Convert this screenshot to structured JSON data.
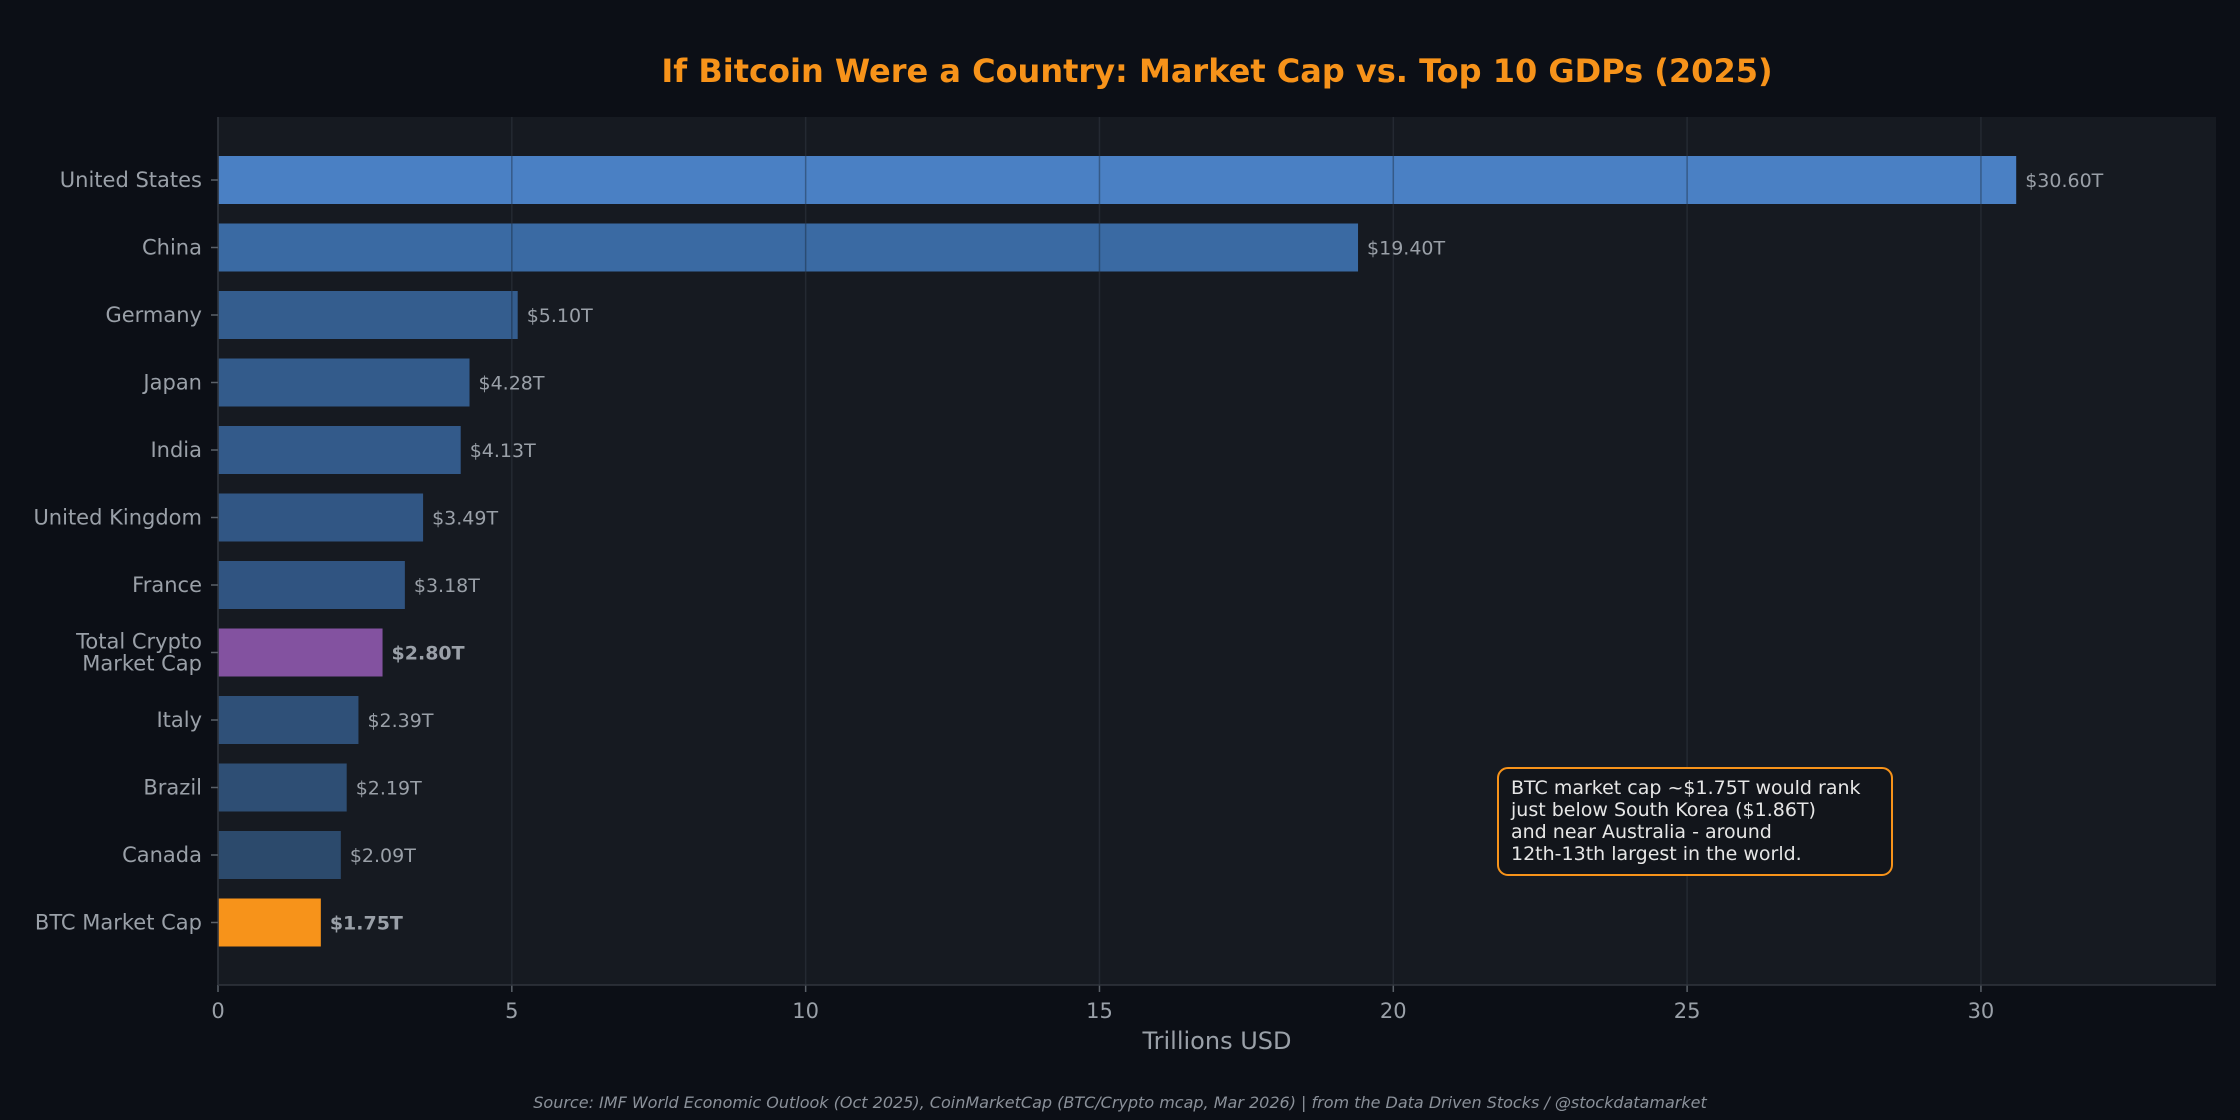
{
  "chart_data": {
    "type": "bar",
    "orientation": "horizontal",
    "title": "If Bitcoin Were a Country: Market Cap vs. Top 10 GDPs (2025)",
    "xlabel": "Trillions USD",
    "ylabel": "",
    "xlim": [
      0,
      34
    ],
    "xticks": [
      0,
      5,
      10,
      15,
      20,
      25,
      30
    ],
    "grid": true,
    "bars": [
      {
        "label": "United States",
        "value": 30.6,
        "value_label": "$30.60T",
        "color": "#4a80c4",
        "highlight": false
      },
      {
        "label": "China",
        "value": 19.4,
        "value_label": "$19.40T",
        "color": "#3a6aa3",
        "highlight": false
      },
      {
        "label": "Germany",
        "value": 5.1,
        "value_label": "$5.10T",
        "color": "#345d8e",
        "highlight": false
      },
      {
        "label": "Japan",
        "value": 4.28,
        "value_label": "$4.28T",
        "color": "#335b8b",
        "highlight": false
      },
      {
        "label": "India",
        "value": 4.13,
        "value_label": "$4.13T",
        "color": "#335a8a",
        "highlight": false
      },
      {
        "label": "United Kingdom",
        "value": 3.49,
        "value_label": "$3.49T",
        "color": "#315684",
        "highlight": false
      },
      {
        "label": "France",
        "value": 3.18,
        "value_label": "$3.18T",
        "color": "#305481",
        "highlight": false
      },
      {
        "label": "Total Crypto\nMarket Cap",
        "value": 2.8,
        "value_label": "$2.80T",
        "color": "#8352a0",
        "highlight": true
      },
      {
        "label": "Italy",
        "value": 2.39,
        "value_label": "$2.39T",
        "color": "#2f5078",
        "highlight": false
      },
      {
        "label": "Brazil",
        "value": 2.19,
        "value_label": "$2.19T",
        "color": "#2e4e74",
        "highlight": false
      },
      {
        "label": "Canada",
        "value": 2.09,
        "value_label": "$2.09T",
        "color": "#2c4a6c",
        "highlight": false
      },
      {
        "label": "BTC Market Cap",
        "value": 1.75,
        "value_label": "$1.75T",
        "color": "#f7931a",
        "highlight": true
      }
    ],
    "highlight_label_color": "#f7931a",
    "annotation": {
      "lines": [
        "BTC market cap ~$1.75T would rank",
        "just below South Korea ($1.86T)",
        "and near Australia - around",
        "12th-13th largest in the world."
      ],
      "border_color": "#f7931a"
    },
    "source": "Source: IMF World Economic Outlook (Oct 2025), CoinMarketCap (BTC/Crypto mcap, Mar 2026) | from the Data Driven Stocks / @stockdatamarket"
  }
}
